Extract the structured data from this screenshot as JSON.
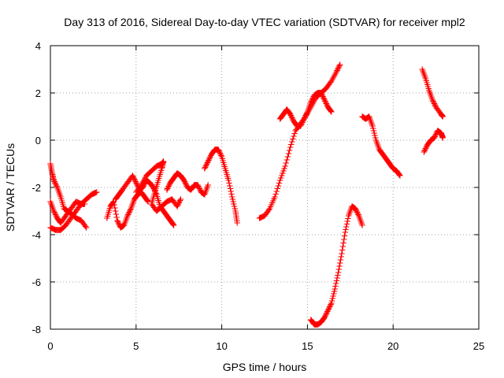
{
  "chart_data": {
    "type": "scatter",
    "title": "Day 313 of 2016, Sidereal Day-to-day VTEC variation (SDTVAR) for receiver mpl2",
    "xlabel": "GPS time / hours",
    "ylabel": "SDTVAR / TECUs",
    "xlim": [
      0,
      25
    ],
    "ylim": [
      -8,
      4
    ],
    "xticks": [
      0,
      5,
      10,
      15,
      20,
      25
    ],
    "yticks": [
      -8,
      -6,
      -4,
      -2,
      0,
      2,
      4
    ],
    "grid": true,
    "marker": "+",
    "color": "#ff0000",
    "series": [
      {
        "values": [
          [
            0.0,
            -1.0
          ],
          [
            0.1,
            -1.4
          ],
          [
            0.2,
            -1.7
          ],
          [
            0.4,
            -2.0
          ],
          [
            0.6,
            -2.4
          ],
          [
            0.8,
            -2.9
          ],
          [
            1.0,
            -3.0
          ],
          [
            1.2,
            -3.1
          ],
          [
            1.5,
            -3.3
          ],
          [
            1.8,
            -3.4
          ],
          [
            2.1,
            -3.7
          ]
        ]
      },
      {
        "values": [
          [
            0.0,
            -3.7
          ],
          [
            0.3,
            -3.8
          ],
          [
            0.6,
            -3.8
          ],
          [
            0.9,
            -3.6
          ],
          [
            1.2,
            -3.3
          ],
          [
            1.5,
            -3.0
          ],
          [
            1.8,
            -2.7
          ],
          [
            2.1,
            -2.5
          ],
          [
            2.4,
            -2.3
          ],
          [
            2.7,
            -2.2
          ]
        ]
      },
      {
        "values": [
          [
            0.0,
            -2.6
          ],
          [
            0.2,
            -3.0
          ],
          [
            0.4,
            -3.3
          ],
          [
            0.6,
            -3.5
          ],
          [
            0.9,
            -3.2
          ],
          [
            1.2,
            -2.9
          ],
          [
            1.5,
            -2.6
          ],
          [
            1.8,
            -2.7
          ],
          [
            2.0,
            -2.7
          ]
        ]
      },
      {
        "values": [
          [
            3.3,
            -3.3
          ],
          [
            3.5,
            -2.8
          ],
          [
            3.7,
            -2.6
          ],
          [
            3.9,
            -3.4
          ],
          [
            4.1,
            -3.7
          ],
          [
            4.3,
            -3.6
          ],
          [
            4.5,
            -3.2
          ],
          [
            4.7,
            -2.9
          ],
          [
            4.9,
            -2.5
          ],
          [
            5.1,
            -2.3
          ],
          [
            5.3,
            -2.2
          ],
          [
            5.5,
            -2.4
          ],
          [
            5.7,
            -2.6
          ]
        ]
      },
      {
        "values": [
          [
            3.8,
            -2.5
          ],
          [
            4.0,
            -2.3
          ],
          [
            4.2,
            -2.1
          ],
          [
            4.5,
            -1.8
          ],
          [
            4.8,
            -1.5
          ],
          [
            5.0,
            -1.8
          ],
          [
            5.2,
            -2.1
          ],
          [
            5.4,
            -2.0
          ],
          [
            5.6,
            -1.7
          ],
          [
            5.8,
            -1.8
          ],
          [
            6.0,
            -2.0
          ],
          [
            6.2,
            -2.3
          ],
          [
            6.4,
            -2.8
          ],
          [
            6.6,
            -3.0
          ],
          [
            6.8,
            -3.2
          ],
          [
            7.0,
            -3.4
          ],
          [
            7.2,
            -3.6
          ]
        ]
      },
      {
        "values": [
          [
            5.0,
            -2.2
          ],
          [
            5.3,
            -1.9
          ],
          [
            5.6,
            -1.5
          ],
          [
            5.9,
            -1.3
          ],
          [
            6.2,
            -1.1
          ],
          [
            6.5,
            -1.0
          ],
          [
            6.6,
            -0.9
          ],
          [
            6.5,
            -1.2
          ],
          [
            6.3,
            -1.7
          ],
          [
            6.1,
            -2.2
          ],
          [
            5.9,
            -2.7
          ],
          [
            6.2,
            -3.0
          ],
          [
            6.5,
            -2.8
          ],
          [
            6.8,
            -2.6
          ],
          [
            7.1,
            -2.5
          ],
          [
            7.4,
            -2.8
          ],
          [
            7.6,
            -2.5
          ]
        ]
      },
      {
        "values": [
          [
            6.8,
            -2.1
          ],
          [
            7.0,
            -1.8
          ],
          [
            7.2,
            -1.6
          ],
          [
            7.4,
            -1.4
          ],
          [
            7.6,
            -1.5
          ],
          [
            7.8,
            -1.7
          ],
          [
            8.0,
            -2.0
          ],
          [
            8.2,
            -2.1
          ],
          [
            8.4,
            -1.9
          ],
          [
            8.6,
            -1.9
          ],
          [
            8.8,
            -2.2
          ],
          [
            9.0,
            -2.3
          ],
          [
            9.2,
            -1.9
          ]
        ]
      },
      {
        "values": [
          [
            9.0,
            -1.2
          ],
          [
            9.2,
            -0.9
          ],
          [
            9.4,
            -0.6
          ],
          [
            9.6,
            -0.4
          ],
          [
            9.8,
            -0.4
          ],
          [
            10.0,
            -0.7
          ],
          [
            10.2,
            -1.2
          ],
          [
            10.4,
            -1.7
          ],
          [
            10.6,
            -2.4
          ],
          [
            10.8,
            -3.0
          ],
          [
            10.9,
            -3.5
          ]
        ]
      },
      {
        "values": [
          [
            12.2,
            -3.3
          ],
          [
            12.5,
            -3.2
          ],
          [
            12.8,
            -2.9
          ],
          [
            13.1,
            -2.4
          ],
          [
            13.4,
            -1.7
          ],
          [
            13.7,
            -1.1
          ],
          [
            14.0,
            -0.3
          ],
          [
            14.3,
            0.4
          ],
          [
            14.6,
            0.7
          ],
          [
            14.9,
            1.0
          ],
          [
            15.2,
            1.4
          ],
          [
            15.5,
            1.8
          ],
          [
            15.8,
            2.0
          ],
          [
            16.1,
            2.2
          ],
          [
            16.4,
            2.5
          ],
          [
            16.7,
            2.9
          ],
          [
            16.9,
            3.2
          ]
        ]
      },
      {
        "values": [
          [
            13.4,
            0.9
          ],
          [
            13.6,
            1.1
          ],
          [
            13.8,
            1.3
          ],
          [
            14.0,
            1.1
          ],
          [
            14.2,
            0.8
          ],
          [
            14.4,
            0.6
          ],
          [
            14.6,
            0.6
          ],
          [
            14.8,
            0.9
          ],
          [
            15.0,
            1.2
          ],
          [
            15.2,
            1.6
          ],
          [
            15.4,
            1.9
          ],
          [
            15.6,
            2.0
          ],
          [
            15.8,
            2.0
          ],
          [
            16.0,
            1.7
          ],
          [
            16.2,
            1.4
          ],
          [
            16.4,
            1.2
          ]
        ]
      },
      {
        "values": [
          [
            15.2,
            -7.6
          ],
          [
            15.4,
            -7.8
          ],
          [
            15.6,
            -7.8
          ],
          [
            15.8,
            -7.7
          ],
          [
            16.0,
            -7.5
          ],
          [
            16.2,
            -7.2
          ],
          [
            16.4,
            -6.9
          ],
          [
            16.6,
            -6.3
          ],
          [
            16.8,
            -5.6
          ],
          [
            17.0,
            -4.8
          ],
          [
            17.2,
            -3.9
          ],
          [
            17.4,
            -3.2
          ],
          [
            17.6,
            -2.8
          ],
          [
            17.8,
            -2.9
          ],
          [
            18.0,
            -3.2
          ],
          [
            18.2,
            -3.6
          ]
        ]
      },
      {
        "values": [
          [
            18.2,
            1.0
          ],
          [
            18.4,
            0.9
          ],
          [
            18.6,
            1.0
          ],
          [
            18.8,
            0.6
          ],
          [
            19.0,
            0.0
          ],
          [
            19.2,
            -0.4
          ],
          [
            19.4,
            -0.6
          ],
          [
            19.6,
            -0.8
          ],
          [
            19.8,
            -1.0
          ],
          [
            20.0,
            -1.2
          ],
          [
            20.2,
            -1.3
          ],
          [
            20.4,
            -1.5
          ]
        ]
      },
      {
        "values": [
          [
            21.7,
            3.0
          ],
          [
            21.9,
            2.6
          ],
          [
            22.1,
            2.1
          ],
          [
            22.3,
            1.7
          ],
          [
            22.5,
            1.4
          ],
          [
            22.8,
            1.1
          ],
          [
            22.9,
            1.0
          ]
        ]
      },
      {
        "values": [
          [
            21.8,
            -0.5
          ],
          [
            22.0,
            -0.2
          ],
          [
            22.2,
            0.0
          ],
          [
            22.4,
            0.1
          ],
          [
            22.6,
            0.4
          ],
          [
            22.8,
            0.3
          ],
          [
            22.9,
            0.1
          ]
        ]
      }
    ]
  }
}
